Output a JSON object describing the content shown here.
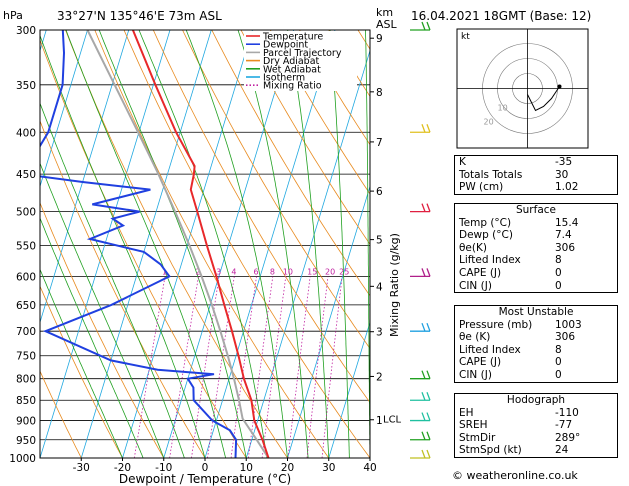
{
  "header": {
    "location": "33°27'N  135°46'E  73m  ASL",
    "datetime": "16.04.2021  18GMT  (Base: 12)",
    "hpa_label": "hPa",
    "km_label": "km",
    "asl_label": "ASL"
  },
  "legend": [
    {
      "label": "Temperature",
      "color": "#e8282a",
      "style": "solid"
    },
    {
      "label": "Dewpoint",
      "color": "#2040e0",
      "style": "solid"
    },
    {
      "label": "Parcel Trajectory",
      "color": "#a8a8a8",
      "style": "solid"
    },
    {
      "label": "Dry Adiabat",
      "color": "#e88b20",
      "style": "solid"
    },
    {
      "label": "Wet Adiabat",
      "color": "#20a020",
      "style": "solid"
    },
    {
      "label": "Isotherm",
      "color": "#20a8e0",
      "style": "solid"
    },
    {
      "label": "Mixing Ratio",
      "color": "#c020a0",
      "style": "dotted"
    }
  ],
  "chart_data": {
    "type": "skew-t",
    "xlabel": "Dewpoint / Temperature (°C)",
    "ylabel_right": "Mixing Ratio (g/kg)",
    "pressure_levels": [
      300,
      350,
      400,
      450,
      500,
      550,
      600,
      650,
      700,
      750,
      800,
      850,
      900,
      950,
      1000
    ],
    "pressure_tick_labels": [
      "300",
      "350",
      "400",
      "450",
      "500",
      "550",
      "600",
      "650",
      "700",
      "750",
      "800",
      "850",
      "900",
      "950",
      "1000"
    ],
    "temperature_ticks": [
      -30,
      -20,
      -10,
      0,
      10,
      20,
      30,
      40
    ],
    "temperature_tick_labels": [
      "-30",
      "-20",
      "-10",
      "0",
      "10",
      "20",
      "30",
      "40"
    ],
    "xlim": [
      -40,
      40
    ],
    "ylim": [
      1000,
      300
    ],
    "altitude_km": [
      {
        "km": 9,
        "p": 307,
        "label": "9"
      },
      {
        "km": 8,
        "p": 357,
        "label": "8"
      },
      {
        "km": 7,
        "p": 411,
        "label": "7"
      },
      {
        "km": 6,
        "p": 472,
        "label": "6"
      },
      {
        "km": 5,
        "p": 541,
        "label": "5"
      },
      {
        "km": 4,
        "p": 617,
        "label": "4"
      },
      {
        "km": 3,
        "p": 701,
        "label": "3"
      },
      {
        "km": 2,
        "p": 795,
        "label": "2"
      },
      {
        "km": 1,
        "p": 898,
        "label": "1"
      }
    ],
    "lcl": {
      "p": 895,
      "label": "LCL"
    },
    "mixing_ratio_lines": [
      {
        "w": 1,
        "label": "1"
      },
      {
        "w": 2,
        "label": "2"
      },
      {
        "w": 3,
        "label": "3"
      },
      {
        "w": 4,
        "label": "4"
      },
      {
        "w": 6,
        "label": "6"
      },
      {
        "w": 8,
        "label": "8"
      },
      {
        "w": 10,
        "label": "10"
      },
      {
        "w": 15,
        "label": "15"
      },
      {
        "w": 20,
        "label": "20"
      },
      {
        "w": 25,
        "label": "25"
      }
    ],
    "mixing_ratio_label_p": 600,
    "temperature_profile": [
      {
        "p": 1000,
        "t": 15.4
      },
      {
        "p": 950,
        "t": 12.6
      },
      {
        "p": 900,
        "t": 9.2
      },
      {
        "p": 850,
        "t": 7.0
      },
      {
        "p": 800,
        "t": 3.6
      },
      {
        "p": 750,
        "t": 0.6
      },
      {
        "p": 700,
        "t": -2.8
      },
      {
        "p": 650,
        "t": -6.6
      },
      {
        "p": 600,
        "t": -10.6
      },
      {
        "p": 550,
        "t": -15.2
      },
      {
        "p": 500,
        "t": -20.0
      },
      {
        "p": 470,
        "t": -23.2
      },
      {
        "p": 450,
        "t": -23.6
      },
      {
        "p": 440,
        "t": -24.0
      },
      {
        "p": 400,
        "t": -31.0
      },
      {
        "p": 350,
        "t": -39.5
      },
      {
        "p": 300,
        "t": -49.0
      }
    ],
    "dewpoint_profile": [
      {
        "p": 1000,
        "t": 7.4
      },
      {
        "p": 950,
        "t": 6.2
      },
      {
        "p": 925,
        "t": 4.0
      },
      {
        "p": 900,
        "t": -1.0
      },
      {
        "p": 850,
        "t": -7.0
      },
      {
        "p": 820,
        "t": -8.0
      },
      {
        "p": 800,
        "t": -10.0
      },
      {
        "p": 790,
        "t": -4.0
      },
      {
        "p": 780,
        "t": -18.0
      },
      {
        "p": 760,
        "t": -30.0
      },
      {
        "p": 700,
        "t": -48.0
      },
      {
        "p": 650,
        "t": -34.0
      },
      {
        "p": 600,
        "t": -22.0
      },
      {
        "p": 580,
        "t": -25.0
      },
      {
        "p": 560,
        "t": -30.0
      },
      {
        "p": 540,
        "t": -44.0
      },
      {
        "p": 520,
        "t": -37.0
      },
      {
        "p": 510,
        "t": -40.0
      },
      {
        "p": 500,
        "t": -34.0
      },
      {
        "p": 490,
        "t": -46.0
      },
      {
        "p": 470,
        "t": -33.0
      },
      {
        "p": 460,
        "t": -50.0
      },
      {
        "p": 450,
        "t": -65.0
      },
      {
        "p": 400,
        "t": -62.0
      },
      {
        "p": 350,
        "t": -62.0
      },
      {
        "p": 320,
        "t": -64.0
      },
      {
        "p": 300,
        "t": -66.0
      }
    ],
    "parcel_profile": [
      {
        "p": 1000,
        "t": 15.4
      },
      {
        "p": 950,
        "t": 11.2
      },
      {
        "p": 895,
        "t": 6.2
      },
      {
        "p": 850,
        "t": 4.0
      },
      {
        "p": 800,
        "t": 1.2
      },
      {
        "p": 750,
        "t": -2.0
      },
      {
        "p": 700,
        "t": -5.6
      },
      {
        "p": 650,
        "t": -9.6
      },
      {
        "p": 600,
        "t": -14.2
      },
      {
        "p": 550,
        "t": -19.4
      },
      {
        "p": 500,
        "t": -25.4
      },
      {
        "p": 450,
        "t": -32.2
      },
      {
        "p": 400,
        "t": -40.2
      },
      {
        "p": 350,
        "t": -49.4
      },
      {
        "p": 300,
        "t": -60.0
      }
    ],
    "wind_barbs": [
      {
        "p": 300,
        "color": "#20a020"
      },
      {
        "p": 400,
        "color": "#e0c020"
      },
      {
        "p": 500,
        "color": "#e02040"
      },
      {
        "p": 600,
        "color": "#b0208a"
      },
      {
        "p": 700,
        "color": "#20a0e0"
      },
      {
        "p": 800,
        "color": "#20a020"
      },
      {
        "p": 850,
        "color": "#20c0a0"
      },
      {
        "p": 900,
        "color": "#20c0a0"
      },
      {
        "p": 950,
        "color": "#20a020"
      },
      {
        "p": 1000,
        "color": "#c0c020"
      }
    ],
    "hodograph": {
      "label": "kt",
      "ring_labels": [
        "10",
        "20"
      ],
      "trace": [
        [
          0,
          0
        ],
        [
          2,
          -4
        ],
        [
          4,
          -3
        ],
        [
          6,
          -1
        ],
        [
          8,
          2
        ]
      ]
    }
  },
  "indices": {
    "rows_top": [
      {
        "label": "K",
        "value": "-35"
      },
      {
        "label": "Totals Totals",
        "value": "30"
      },
      {
        "label": "PW (cm)",
        "value": "1.02"
      }
    ],
    "surface": {
      "title": "Surface",
      "rows": [
        {
          "label": "Temp (°C)",
          "value": "15.4"
        },
        {
          "label": "Dewp (°C)",
          "value": "7.4"
        },
        {
          "label": "θe(K)",
          "value": "306"
        },
        {
          "label": "Lifted Index",
          "value": "8"
        },
        {
          "label": "CAPE (J)",
          "value": "0"
        },
        {
          "label": "CIN (J)",
          "value": "0"
        }
      ]
    },
    "most_unstable": {
      "title": "Most Unstable",
      "rows": [
        {
          "label": "Pressure (mb)",
          "value": "1003"
        },
        {
          "label": "θe (K)",
          "value": "306"
        },
        {
          "label": "Lifted Index",
          "value": "8"
        },
        {
          "label": "CAPE (J)",
          "value": "0"
        },
        {
          "label": "CIN (J)",
          "value": "0"
        }
      ]
    },
    "hodograph_table": {
      "title": "Hodograph",
      "rows": [
        {
          "label": "EH",
          "value": "-110"
        },
        {
          "label": "SREH",
          "value": "-77"
        },
        {
          "label": "StmDir",
          "value": "289°"
        },
        {
          "label": "StmSpd (kt)",
          "value": "24"
        }
      ]
    }
  },
  "footer": "© weatheronline.co.uk"
}
